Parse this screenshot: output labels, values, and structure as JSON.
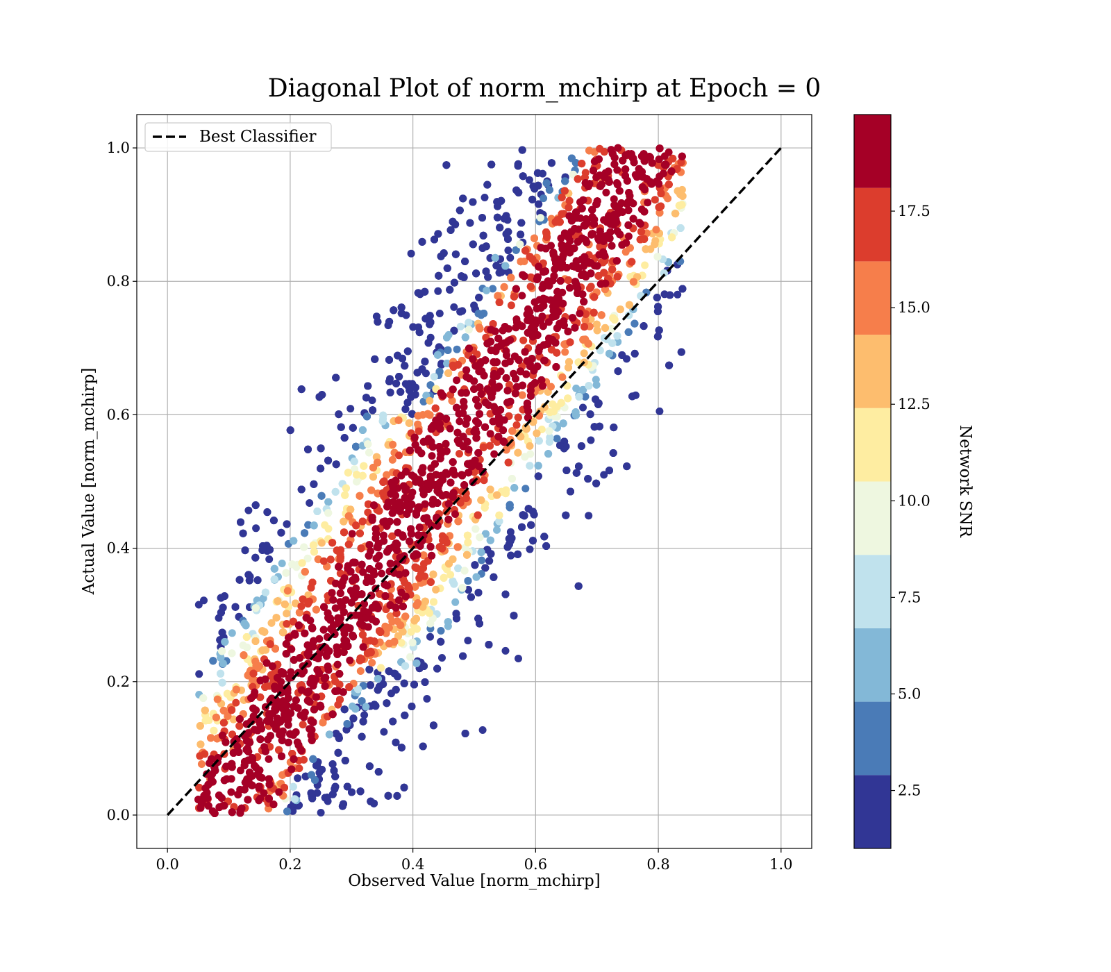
{
  "chart_data": {
    "type": "scatter",
    "title": "Diagonal Plot of norm_mchirp at Epoch = 0",
    "xlabel": "Observed Value [norm_mchirp]",
    "ylabel": "Actual Value [norm_mchirp]",
    "xlim": [
      -0.05,
      1.05
    ],
    "ylim": [
      -0.05,
      1.05
    ],
    "xticks": [
      "0.0",
      "0.2",
      "0.4",
      "0.6",
      "0.8",
      "1.0"
    ],
    "yticks": [
      "0.0",
      "0.2",
      "0.4",
      "0.6",
      "0.8",
      "1.0"
    ],
    "grid": true,
    "legend": {
      "placement": "top-left",
      "entries": [
        {
          "label": "Best Classifier",
          "style": "dashed",
          "color": "#000000"
        }
      ]
    },
    "reference_line": {
      "label": "Best Classifier",
      "x": [
        0.0,
        1.0
      ],
      "y": [
        0.0,
        1.0
      ]
    },
    "colorbar": {
      "label": "Network SNR",
      "range": [
        1.0,
        20.0
      ],
      "boundaries": [
        1.0,
        2.9,
        4.8,
        6.7,
        8.6,
        10.5,
        12.4,
        14.3,
        16.2,
        18.1,
        20.0
      ],
      "colors": [
        "#313695",
        "#4a7bb7",
        "#83b8d7",
        "#c0e2ed",
        "#eef7e0",
        "#feeda1",
        "#fdbd6e",
        "#f67e4b",
        "#dc3d2d",
        "#a50026"
      ],
      "ticks": [
        2.5,
        5.0,
        7.5,
        10.0,
        12.5,
        15.0,
        17.5
      ],
      "tick_labels": [
        "2.5",
        "5.0",
        "7.5",
        "10.0",
        "12.5",
        "15.0",
        "17.5"
      ]
    },
    "series": [
      {
        "distribution": "dense band around the diagonal, observed ≈ 0.06–0.83, actual ≈ 0.0–1.0",
        "high_snr_region": "center of band, aligned with diagonal",
        "low_snr_regions": [
          "upper-left wing near observed 0.3–0.5, actual 0.6–1.0",
          "lower-right wing near observed 0.35–0.55, actual 0.0–0.2"
        ]
      }
    ]
  }
}
